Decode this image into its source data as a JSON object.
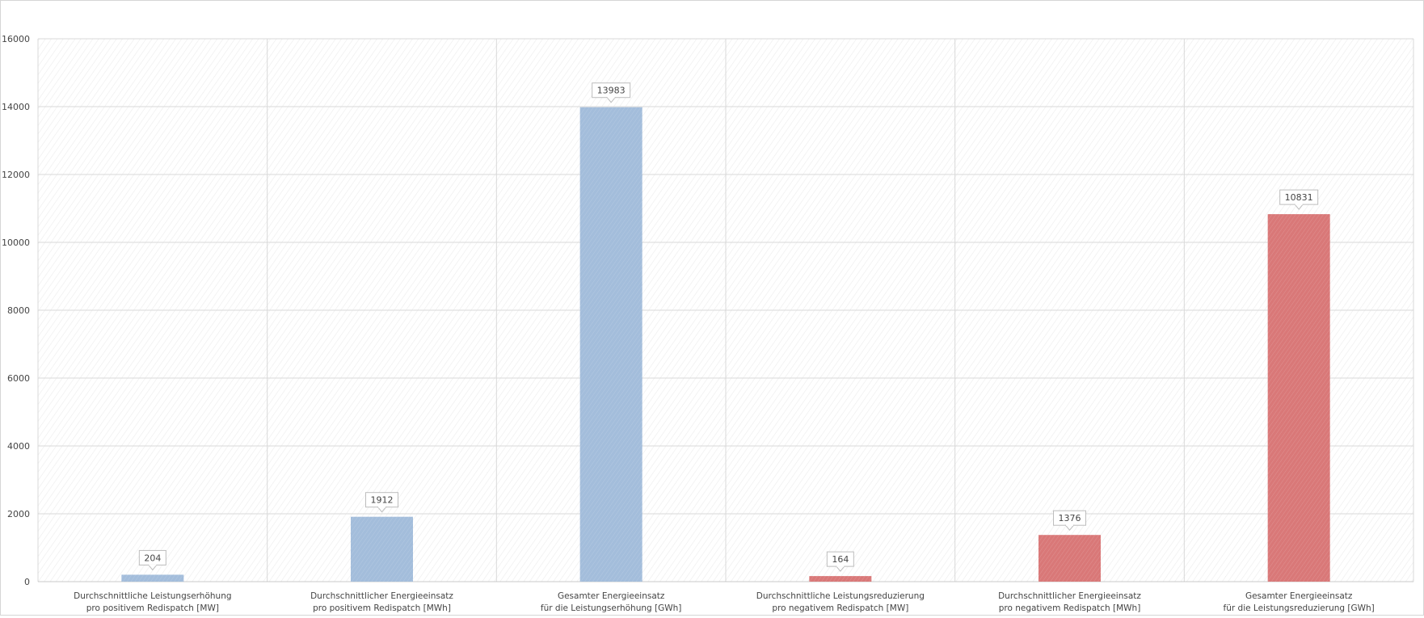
{
  "chart_data": {
    "type": "bar",
    "categories": [
      [
        "Durchschnittliche Leistungserhöhung",
        "pro positivem Redispatch [MW]"
      ],
      [
        "Durchschnittlicher Energieeinsatz",
        "pro positivem Redispatch [MWh]"
      ],
      [
        "Gesamter Energieeinsatz",
        "für die Leistungserhöhung [GWh]"
      ],
      [
        "Durchschnittliche Leistungsreduzierung",
        "pro negativem Redispatch [MW]"
      ],
      [
        "Durchschnittlicher Energieeinsatz",
        "pro negativem Redispatch [MWh]"
      ],
      [
        "Gesamter Energieeinsatz",
        "für die Leistungsreduzierung [GWh]"
      ]
    ],
    "values": [
      204,
      1912,
      13983,
      164,
      1376,
      10831
    ],
    "data_labels": [
      "204",
      "1912",
      "13983",
      "164",
      "1376",
      "10831"
    ],
    "bar_colors": [
      "#a3bddb",
      "#a3bddb",
      "#a3bddb",
      "#d97878",
      "#d97878",
      "#d97878"
    ],
    "yticks": [
      "0",
      "2000",
      "4000",
      "6000",
      "8000",
      "10000",
      "12000",
      "14000",
      "16000"
    ],
    "ylim": [
      0,
      16000
    ],
    "grid": true,
    "legend": "none",
    "title": "",
    "xlabel": "",
    "ylabel": ""
  }
}
